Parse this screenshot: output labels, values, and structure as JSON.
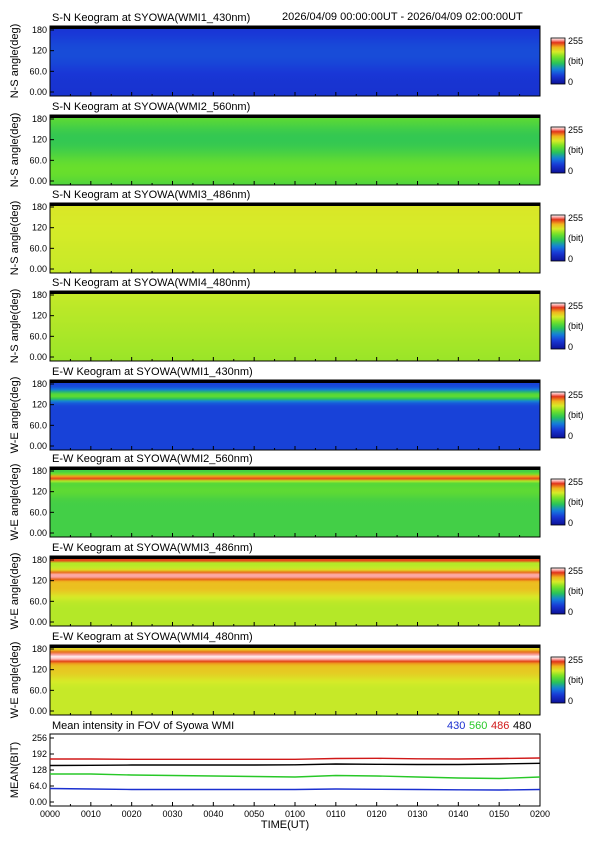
{
  "header": {
    "time_range": "2026/04/09 00:00:00UT - 2026/04/09 02:00:00UT"
  },
  "colors": {
    "blue": "#1a2fd0",
    "green": "#28c828",
    "red": "#d01818",
    "black": "#000000"
  },
  "chart_data": [
    {
      "type": "heatmap",
      "title": "S-N Keogram at SYOWA(WMI1_430nm)",
      "ylabel": "N-S angle(deg)",
      "yticks": [
        "180",
        "120",
        "60.0",
        "0.00"
      ],
      "cbar": {
        "max": "255",
        "unit": "(bit)",
        "min": "0"
      },
      "profile": "sn430"
    },
    {
      "type": "heatmap",
      "title": "S-N Keogram at SYOWA(WMI2_560nm)",
      "ylabel": "N-S angle(deg)",
      "yticks": [
        "180",
        "120",
        "60.0",
        "0.00"
      ],
      "cbar": {
        "max": "255",
        "unit": "(bit)",
        "min": "0"
      },
      "profile": "sn560"
    },
    {
      "type": "heatmap",
      "title": "S-N Keogram at SYOWA(WMI3_486nm)",
      "ylabel": "N-S angle(deg)",
      "yticks": [
        "180",
        "120",
        "60.0",
        "0.00"
      ],
      "cbar": {
        "max": "255",
        "unit": "(bit)",
        "min": "0"
      },
      "profile": "sn486"
    },
    {
      "type": "heatmap",
      "title": "S-N Keogram at SYOWA(WMI4_480nm)",
      "ylabel": "N-S angle(deg)",
      "yticks": [
        "180",
        "120",
        "60.0",
        "0.00"
      ],
      "cbar": {
        "max": "255",
        "unit": "(bit)",
        "min": "0"
      },
      "profile": "sn480"
    },
    {
      "type": "heatmap",
      "title": "E-W Keogram at SYOWA(WMI1_430nm)",
      "ylabel": "W-E angle(deg)",
      "yticks": [
        "180",
        "120",
        "60.0",
        "0.00"
      ],
      "cbar": {
        "max": "255",
        "unit": "(bit)",
        "min": "0"
      },
      "profile": "ew430"
    },
    {
      "type": "heatmap",
      "title": "E-W Keogram at SYOWA(WMI2_560nm)",
      "ylabel": "W-E angle(deg)",
      "yticks": [
        "180",
        "120",
        "60.0",
        "0.00"
      ],
      "cbar": {
        "max": "255",
        "unit": "(bit)",
        "min": "0"
      },
      "profile": "ew560"
    },
    {
      "type": "heatmap",
      "title": "E-W Keogram at SYOWA(WMI3_486nm)",
      "ylabel": "W-E angle(deg)",
      "yticks": [
        "180",
        "120",
        "60.0",
        "0.00"
      ],
      "cbar": {
        "max": "255",
        "unit": "(bit)",
        "min": "0"
      },
      "profile": "ew486"
    },
    {
      "type": "heatmap",
      "title": "E-W Keogram at SYOWA(WMI4_480nm)",
      "ylabel": "W-E angle(deg)",
      "yticks": [
        "180",
        "120",
        "60.0",
        "0.00"
      ],
      "cbar": {
        "max": "255",
        "unit": "(bit)",
        "min": "0"
      },
      "profile": "ew480"
    },
    {
      "type": "line",
      "title": "Mean intensity in FOV of Syowa WMI",
      "ylabel": "MEAN(BIT)",
      "xlabel": "TIME(UT)",
      "ylim": [
        0,
        256
      ],
      "yticks": [
        "256",
        "192",
        "128",
        "64.0",
        "0.00"
      ],
      "xticks": [
        "0000",
        "0010",
        "0020",
        "0030",
        "0040",
        "0050",
        "0100",
        "0110",
        "0120",
        "0130",
        "0140",
        "0150",
        "0200"
      ],
      "legend": [
        {
          "label": "430",
          "color": "#1a2fd0"
        },
        {
          "label": "560",
          "color": "#28c828"
        },
        {
          "label": "486",
          "color": "#d01818"
        },
        {
          "label": "480",
          "color": "#000000"
        }
      ],
      "x_minutes": [
        0,
        10,
        20,
        30,
        40,
        50,
        60,
        70,
        80,
        90,
        100,
        110,
        120
      ],
      "series": [
        {
          "name": "486",
          "color": "#d01818",
          "values": [
            172,
            172,
            171,
            171,
            171,
            171,
            171,
            174,
            175,
            173,
            172,
            174,
            176
          ]
        },
        {
          "name": "480",
          "color": "#000000",
          "values": [
            146,
            147,
            148,
            148,
            148,
            148,
            149,
            152,
            151,
            150,
            150,
            152,
            155
          ]
        },
        {
          "name": "560",
          "color": "#28c828",
          "values": [
            112,
            112,
            108,
            106,
            104,
            102,
            100,
            106,
            104,
            100,
            96,
            94,
            100
          ]
        },
        {
          "name": "430",
          "color": "#1a2fd0",
          "values": [
            54,
            52,
            50,
            50,
            50,
            50,
            50,
            52,
            51,
            50,
            49,
            48,
            50
          ]
        }
      ]
    }
  ]
}
